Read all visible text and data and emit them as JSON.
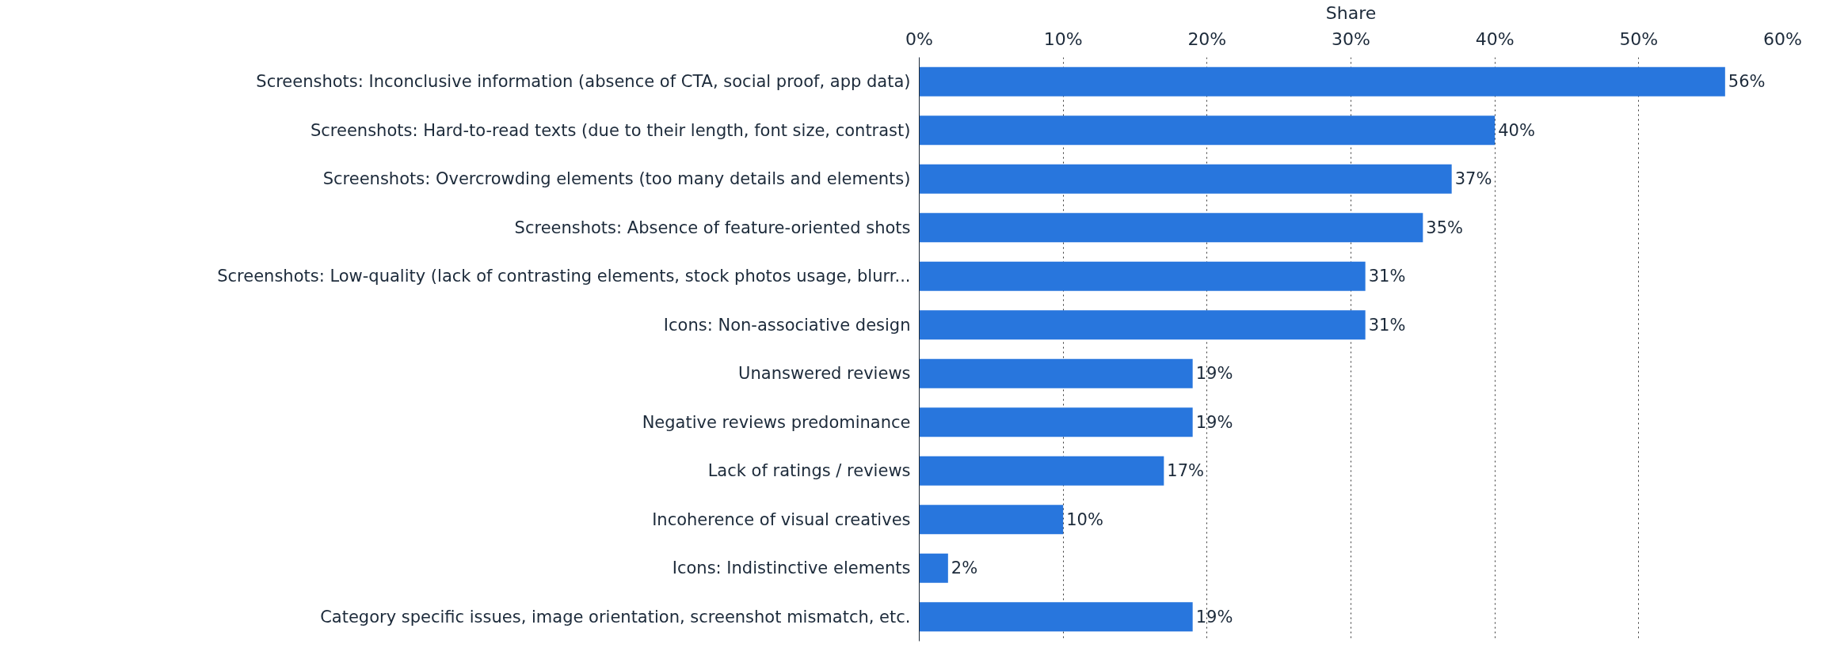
{
  "chart_data": {
    "type": "bar",
    "orientation": "horizontal",
    "xlabel": "Share",
    "categories": [
      "Screenshots: Inconclusive information (absence of CTA, social proof, app data)",
      "Screenshots: Hard-to-read texts (due to their length, font size, contrast)",
      "Screenshots: Overcrowding elements (too many details and elements)",
      "Screenshots: Absence of feature-oriented shots",
      "Screenshots: Low-quality (lack of contrasting elements, stock photos usage, blurr...",
      "Icons: Non-associative design",
      "Unanswered reviews",
      "Negative reviews predominance",
      "Lack of ratings / reviews",
      "Incoherence of visual creatives",
      "Icons: Indistinctive elements",
      "Category specific issues, image orientation, screenshot mismatch, etc."
    ],
    "values": [
      56,
      40,
      37,
      35,
      31,
      31,
      19,
      19,
      17,
      10,
      2,
      19
    ],
    "color": "#2876dd",
    "xlim": [
      0,
      60
    ],
    "xticks": [
      {
        "value": 0,
        "label": "0%"
      },
      {
        "value": 10,
        "label": "10%"
      },
      {
        "value": 20,
        "label": "20%"
      },
      {
        "value": 30,
        "label": "30%"
      },
      {
        "value": 40,
        "label": "40%"
      },
      {
        "value": 50,
        "label": "50%"
      },
      {
        "value": 60,
        "label": "60%"
      }
    ],
    "value_labels": [
      "56%",
      "40%",
      "37%",
      "35%",
      "31%",
      "31%",
      "19%",
      "19%",
      "17%",
      "10%",
      "2%",
      "19%"
    ],
    "grid": "x"
  }
}
